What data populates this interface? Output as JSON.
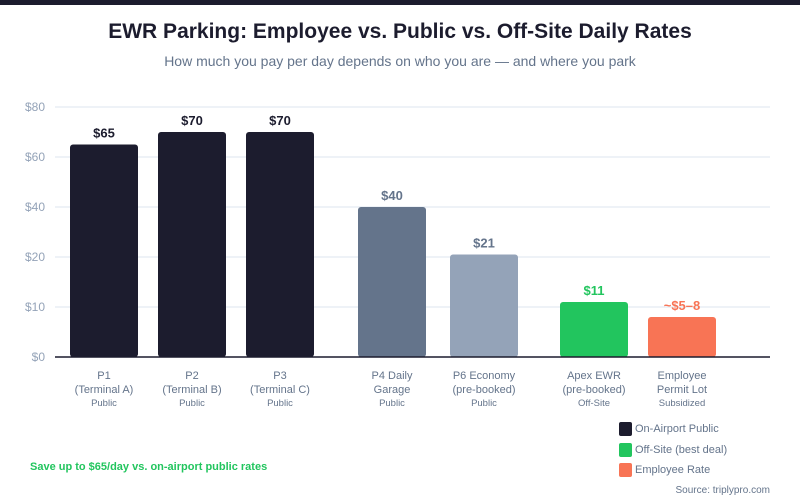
{
  "title": "EWR Parking: Employee vs. Public vs. Off-Site Daily Rates",
  "subtitle": "How much you pay per day depends on who you are — and where you park",
  "chart_data": {
    "type": "bar",
    "title": "EWR Parking: Employee vs. Public vs. Off-Site Daily Rates",
    "subtitle": "How much you pay per day depends on who you are — and where you park",
    "y_ticks": [
      0,
      10,
      20,
      40,
      60,
      80
    ],
    "y_tick_labels": [
      "$0",
      "$10",
      "$20",
      "$40",
      "$60",
      "$80"
    ],
    "ylim": [
      0,
      80
    ],
    "y_scale": "non-linear (evenly spaced ticks at 0, 10, 20, 40, 60, 80)",
    "grid": true,
    "categories": [
      {
        "name": "P1",
        "sub": "(Terminal A)",
        "type": "Public"
      },
      {
        "name": "P2",
        "sub": "(Terminal B)",
        "type": "Public"
      },
      {
        "name": "P3",
        "sub": "(Terminal C)",
        "type": "Public"
      },
      {
        "name": "P4 Daily",
        "sub": "Garage",
        "type": "Public"
      },
      {
        "name": "P6 Economy",
        "sub": "(pre-booked)",
        "type": "Public"
      },
      {
        "name": "Apex EWR",
        "sub": "(pre-booked)",
        "type": "Off-Site"
      },
      {
        "name": "Employee",
        "sub": "Permit Lot",
        "type": "Subsidized"
      }
    ],
    "values": [
      65,
      70,
      70,
      40,
      21,
      11,
      [
        5,
        8
      ]
    ],
    "data_labels": [
      "$65",
      "$70",
      "$70",
      "$40",
      "$21",
      "$11",
      "~$5–8"
    ],
    "bar_colors": [
      "#1c1c2e",
      "#1c1c2e",
      "#1c1c2e",
      "#64748b",
      "#94a3b8",
      "#22c55e",
      "#f87455"
    ],
    "label_colors": [
      "#1c1c2e",
      "#1c1c2e",
      "#1c1c2e",
      "#64748b",
      "#64748b",
      "#22c55e",
      "#f87455"
    ],
    "legend": [
      {
        "label": "On-Airport Public",
        "color": "#1c1c2e"
      },
      {
        "label": "Off-Site (best deal)",
        "color": "#22c55e"
      },
      {
        "label": "Employee Rate",
        "color": "#f87455"
      }
    ],
    "legend_position": "bottom-right"
  },
  "footer": {
    "savings": "Save up to $65/day vs. on-airport public rates",
    "source": "Source: triplypro.com"
  }
}
